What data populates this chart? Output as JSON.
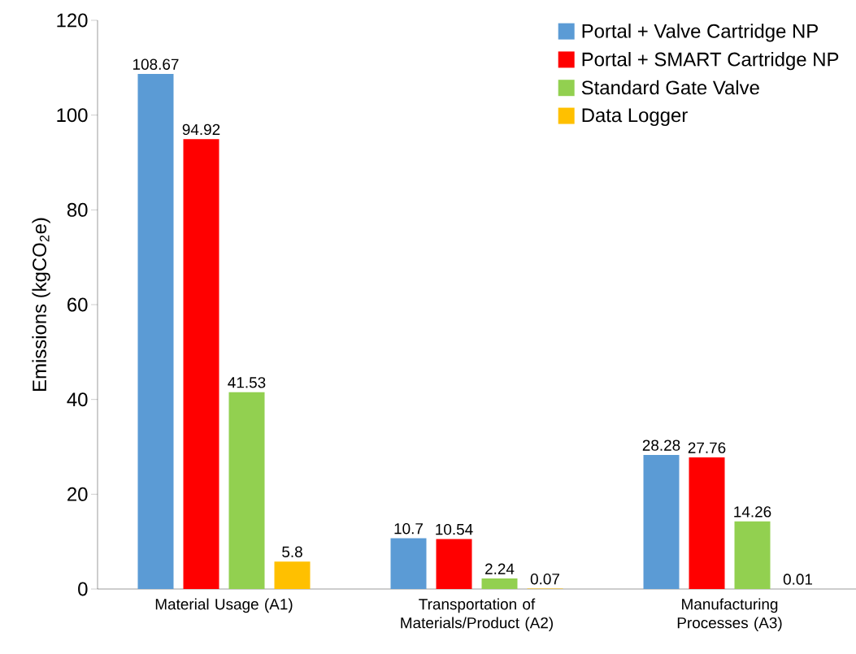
{
  "chart_data": {
    "type": "bar",
    "ylabel": "Emissions (kgCO$_{2}$e)",
    "categories": [
      "Material Usage (A1)",
      "Transportation of Materials/Product (A2)",
      "Manufacturing Processes (A3)"
    ],
    "series": [
      {
        "name": "Portal + Valve Cartridge NP",
        "color": "#5b9bd5",
        "values": [
          108.67,
          10.7,
          28.28
        ]
      },
      {
        "name": "Portal + SMART Cartridge NP",
        "color": "#ff0000",
        "values": [
          94.92,
          10.54,
          27.76
        ]
      },
      {
        "name": "Standard Gate Valve",
        "color": "#92d050",
        "values": [
          41.53,
          2.24,
          14.26
        ]
      },
      {
        "name": "Data Logger",
        "color": "#ffc000",
        "values": [
          5.8,
          0.07,
          0.01
        ]
      }
    ],
    "ylim": [
      0,
      120
    ],
    "yticks": [
      0,
      20,
      40,
      60,
      80,
      100,
      120
    ],
    "data_labels": true,
    "grid": false,
    "legend": "top right"
  }
}
